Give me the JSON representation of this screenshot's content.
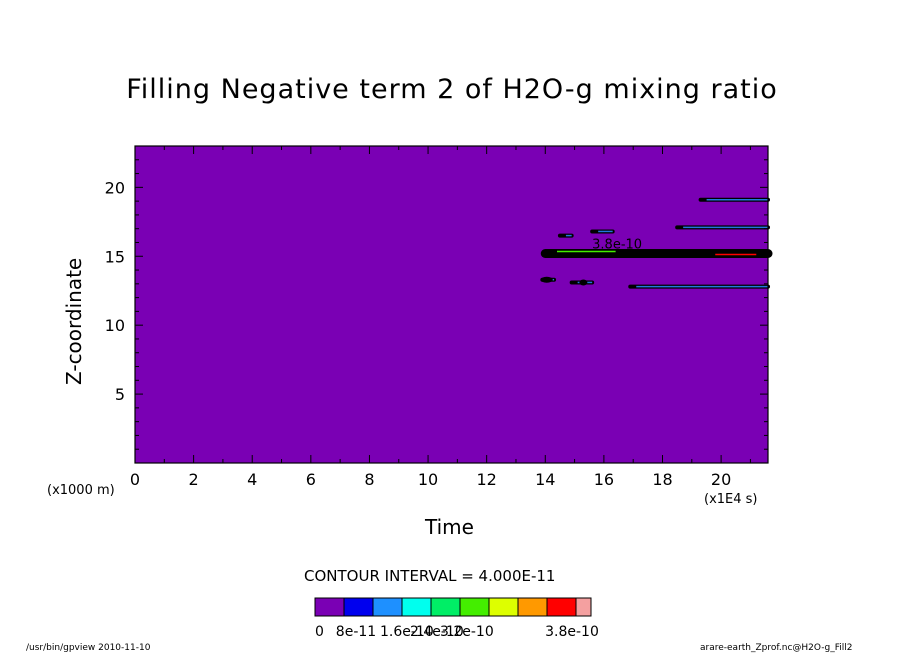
{
  "chart_data": {
    "type": "heatmap",
    "title": "Filling Negative term 2 of H2O-g mixing ratio",
    "xlabel": "Time",
    "ylabel": "Z-coordinate",
    "x_unit": "(x1E4 s)",
    "y_unit": "(x1000 m)",
    "xlim": [
      0,
      21.6
    ],
    "ylim": [
      0,
      23
    ],
    "x_ticks": [
      "0",
      "2",
      "4",
      "6",
      "8",
      "10",
      "12",
      "14",
      "16",
      "18",
      "20"
    ],
    "y_ticks": [
      "5",
      "10",
      "15",
      "20"
    ],
    "background_value": 0,
    "contour_interval": "CONTOUR INTERVAL = 4.000E-11",
    "colorbar": {
      "colors": [
        "#7a00b4",
        "#0000ee",
        "#1e90ff",
        "#00ffee",
        "#00ee66",
        "#44ee00",
        "#ddff00",
        "#ff9900",
        "#ff0000",
        "#f4a0a0"
      ],
      "labels": [
        "0",
        "8e-11",
        "1.6e-10",
        "2.4e-10",
        "3.2e-10",
        "3.8e-10"
      ]
    },
    "inline_label": "3.8e-10",
    "features": [
      {
        "x": [
          14.0,
          21.6
        ],
        "z": 15.2,
        "note": "dense contour band"
      },
      {
        "x": [
          18.5,
          21.6
        ],
        "z": 17.1
      },
      {
        "x": [
          19.3,
          21.6
        ],
        "z": 19.1
      },
      {
        "x": [
          16.9,
          21.6
        ],
        "z": 12.8
      },
      {
        "x": [
          13.9,
          14.3
        ],
        "z": 13.3
      },
      {
        "x": [
          14.9,
          15.6
        ],
        "z": 13.1
      },
      {
        "x": [
          15.6,
          16.3
        ],
        "z": 16.8
      },
      {
        "x": [
          14.5,
          14.9
        ],
        "z": 16.5
      }
    ]
  },
  "footer": {
    "left": "/usr/bin/gpview  2010-11-10",
    "right": "arare-earth_Zprof.nc@H2O-g_Fill2"
  }
}
